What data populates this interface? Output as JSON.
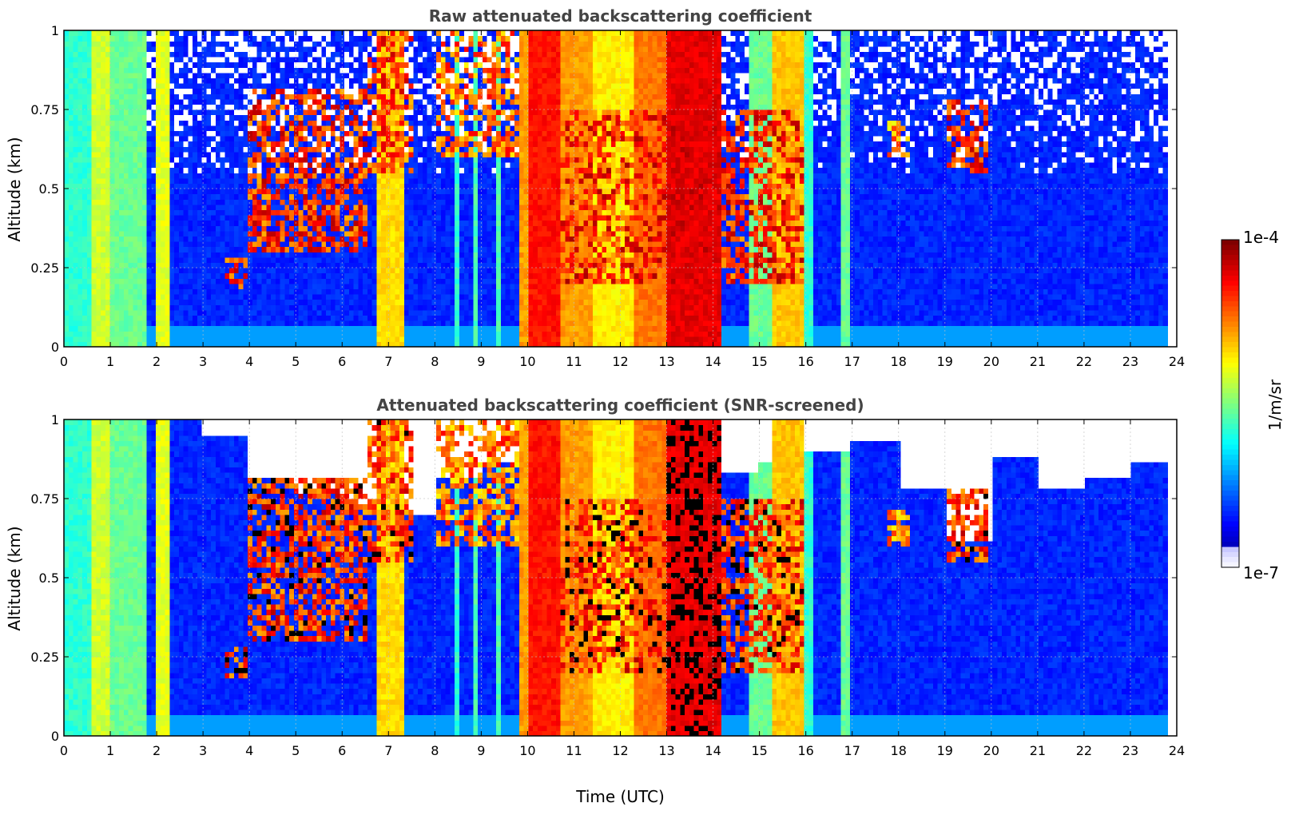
{
  "colors": {
    "jet": [
      "#00007f",
      "#0000ff",
      "#007fff",
      "#00ffff",
      "#7fff7f",
      "#ffff00",
      "#ff7f00",
      "#ff0000",
      "#7f0000"
    ],
    "grid": "#c0c0c0",
    "title": "#444444",
    "screened": "#000000"
  },
  "x_ticks": [
    "0",
    "1",
    "2",
    "3",
    "4",
    "5",
    "6",
    "7",
    "8",
    "9",
    "10",
    "11",
    "12",
    "13",
    "14",
    "15",
    "16",
    "17",
    "18",
    "19",
    "20",
    "21",
    "22",
    "23",
    "24"
  ],
  "y_ticks": [
    "0",
    "0.25",
    "0.5",
    "0.75",
    "1"
  ],
  "chart_data": [
    {
      "type": "heatmap",
      "title": "Raw attenuated backscattering coefficient",
      "xlabel": "",
      "ylabel": "Altitude (km)",
      "xlim": [
        0,
        24
      ],
      "ylim": [
        0,
        1
      ],
      "grid": true,
      "colorscale": "jet (log)",
      "clim": [
        "1e-7",
        "1e-4"
      ],
      "colorbar_label": "1/m/sr",
      "screened": false,
      "features": [
        {
          "type": "column",
          "x0": 0.0,
          "x1": 0.55,
          "level": 0.42
        },
        {
          "type": "column",
          "x0": 0.55,
          "x1": 1.0,
          "level": 0.58
        },
        {
          "type": "column",
          "x0": 1.0,
          "x1": 1.8,
          "level": 0.48
        },
        {
          "type": "column",
          "x0": 2.0,
          "x1": 2.25,
          "level": 0.6
        },
        {
          "type": "column",
          "x0": 6.75,
          "x1": 7.3,
          "level": 0.66
        },
        {
          "type": "column",
          "x0": 8.45,
          "x1": 8.55,
          "level": 0.42
        },
        {
          "type": "column",
          "x0": 8.8,
          "x1": 8.9,
          "level": 0.45
        },
        {
          "type": "column",
          "x0": 9.35,
          "x1": 9.45,
          "level": 0.45
        },
        {
          "type": "column",
          "x0": 9.8,
          "x1": 10.0,
          "level": 0.72
        },
        {
          "type": "column",
          "x0": 10.0,
          "x1": 10.7,
          "level": 0.86
        },
        {
          "type": "column",
          "x0": 10.7,
          "x1": 11.4,
          "level": 0.72
        },
        {
          "type": "column",
          "x0": 11.4,
          "x1": 12.3,
          "level": 0.64
        },
        {
          "type": "column",
          "x0": 12.3,
          "x1": 13.0,
          "level": 0.76
        },
        {
          "type": "column",
          "x0": 13.0,
          "x1": 14.2,
          "level": 0.9
        },
        {
          "type": "column",
          "x0": 14.8,
          "x1": 15.3,
          "level": 0.48
        },
        {
          "type": "column",
          "x0": 15.3,
          "x1": 16.0,
          "level": 0.68
        },
        {
          "type": "column",
          "x0": 16.0,
          "x1": 16.15,
          "level": 0.42
        },
        {
          "type": "column",
          "x0": 16.8,
          "x1": 16.95,
          "level": 0.48
        },
        {
          "type": "cloud",
          "x0": 3.5,
          "x1": 4.0,
          "y0": 0.18,
          "y1": 0.28,
          "level": 0.95
        },
        {
          "type": "cloud",
          "x0": 4.0,
          "x1": 6.5,
          "y0": 0.3,
          "y1": 0.82,
          "level": 0.95
        },
        {
          "type": "cloud",
          "x0": 6.5,
          "x1": 7.5,
          "y0": 0.55,
          "y1": 1.0,
          "level": 0.93
        },
        {
          "type": "cloud",
          "x0": 8.0,
          "x1": 9.8,
          "y0": 0.6,
          "y1": 1.0,
          "level": 0.88
        },
        {
          "type": "cloud",
          "x0": 10.7,
          "x1": 16.0,
          "y0": 0.2,
          "y1": 0.75,
          "level": 0.96
        },
        {
          "type": "cloud",
          "x0": 17.8,
          "x1": 18.2,
          "y0": 0.6,
          "y1": 0.72,
          "level": 0.85
        },
        {
          "type": "cloud",
          "x0": 19.0,
          "x1": 19.9,
          "y0": 0.55,
          "y1": 0.78,
          "level": 0.95
        }
      ]
    },
    {
      "type": "heatmap",
      "title": "Attenuated backscattering coefficient (SNR-screened)",
      "xlabel": "Time (UTC)",
      "ylabel": "Altitude (km)",
      "xlim": [
        0,
        24
      ],
      "ylim": [
        0,
        1
      ],
      "grid": true,
      "colorscale": "jet (log)",
      "clim": [
        "1e-7",
        "1e-4"
      ],
      "colorbar_label": "1/m/sr",
      "screened": true,
      "features": [
        {
          "type": "column",
          "x0": 0.0,
          "x1": 0.55,
          "level": 0.42
        },
        {
          "type": "column",
          "x0": 0.55,
          "x1": 1.0,
          "level": 0.58
        },
        {
          "type": "column",
          "x0": 1.0,
          "x1": 1.8,
          "level": 0.48
        },
        {
          "type": "column",
          "x0": 2.0,
          "x1": 2.25,
          "level": 0.6
        },
        {
          "type": "column",
          "x0": 6.75,
          "x1": 7.3,
          "level": 0.66
        },
        {
          "type": "column",
          "x0": 8.45,
          "x1": 8.55,
          "level": 0.42
        },
        {
          "type": "column",
          "x0": 8.8,
          "x1": 8.9,
          "level": 0.45
        },
        {
          "type": "column",
          "x0": 9.35,
          "x1": 9.45,
          "level": 0.45
        },
        {
          "type": "column",
          "x0": 9.8,
          "x1": 10.0,
          "level": 0.72
        },
        {
          "type": "column",
          "x0": 10.0,
          "x1": 10.7,
          "level": 0.86
        },
        {
          "type": "column",
          "x0": 10.7,
          "x1": 11.4,
          "level": 0.72
        },
        {
          "type": "column",
          "x0": 11.4,
          "x1": 12.3,
          "level": 0.64
        },
        {
          "type": "column",
          "x0": 12.3,
          "x1": 13.0,
          "level": 0.76
        },
        {
          "type": "column",
          "x0": 13.0,
          "x1": 14.2,
          "level": 0.9
        },
        {
          "type": "column",
          "x0": 14.8,
          "x1": 15.3,
          "level": 0.48
        },
        {
          "type": "column",
          "x0": 15.3,
          "x1": 16.0,
          "level": 0.68
        },
        {
          "type": "column",
          "x0": 16.0,
          "x1": 16.15,
          "level": 0.42
        },
        {
          "type": "column",
          "x0": 16.8,
          "x1": 16.95,
          "level": 0.48
        },
        {
          "type": "cloud",
          "x0": 3.5,
          "x1": 4.0,
          "y0": 0.18,
          "y1": 0.28,
          "level": 0.95
        },
        {
          "type": "cloud",
          "x0": 4.0,
          "x1": 6.5,
          "y0": 0.3,
          "y1": 0.82,
          "level": 0.95
        },
        {
          "type": "cloud",
          "x0": 6.5,
          "x1": 7.5,
          "y0": 0.55,
          "y1": 1.0,
          "level": 0.93
        },
        {
          "type": "cloud",
          "x0": 8.0,
          "x1": 9.8,
          "y0": 0.6,
          "y1": 1.0,
          "level": 0.88
        },
        {
          "type": "cloud",
          "x0": 10.7,
          "x1": 16.0,
          "y0": 0.2,
          "y1": 0.75,
          "level": 0.96
        },
        {
          "type": "cloud",
          "x0": 17.8,
          "x1": 18.2,
          "y0": 0.6,
          "y1": 0.72,
          "level": 0.85
        },
        {
          "type": "cloud",
          "x0": 19.0,
          "x1": 19.9,
          "y0": 0.55,
          "y1": 0.78,
          "level": 0.95
        }
      ],
      "clear_top": [
        1.0,
        1.0,
        1.0,
        0.95,
        0.82,
        0.76,
        0.72,
        0.7,
        0.82,
        0.86,
        0.92,
        0.84,
        0.9,
        0.7,
        0.84,
        0.86,
        0.9,
        0.93,
        0.78,
        0.62,
        0.88,
        0.78,
        0.82,
        0.86
      ]
    }
  ],
  "colorbar": {
    "max_label": "1e-4",
    "min_label": "1e-7",
    "unit_label": "1/m/sr"
  }
}
